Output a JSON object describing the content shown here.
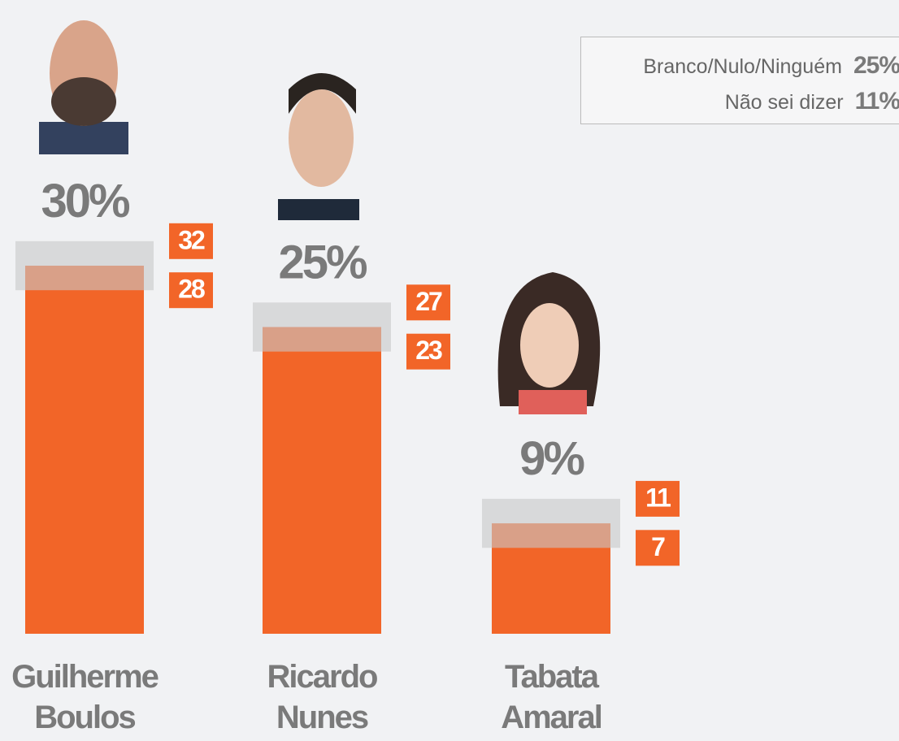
{
  "chart_data": {
    "type": "bar",
    "categories": [
      "Guilherme Boulos",
      "Ricardo Nunes",
      "Tabata Amaral"
    ],
    "values": [
      30,
      25,
      9
    ],
    "value_labels": [
      "30%",
      "25%",
      "9%"
    ],
    "low": [
      28,
      23,
      7
    ],
    "high": [
      32,
      27,
      11
    ],
    "color": "#f26528",
    "range_color": "#c8c8c8",
    "others": [
      {
        "name": "Branco/Nulo/Ninguém",
        "value": 25,
        "value_label": "25%"
      },
      {
        "name": "Não sei dizer",
        "value": 11,
        "value_label": "11%"
      }
    ]
  }
}
